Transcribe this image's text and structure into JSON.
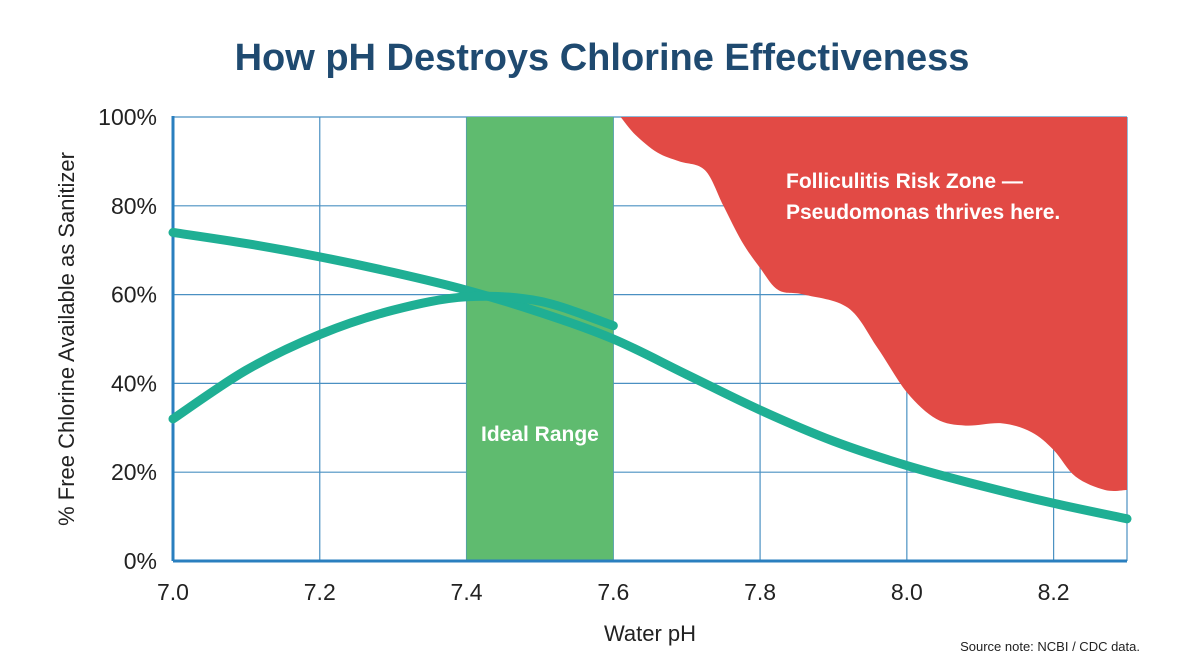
{
  "chart_data": {
    "type": "line",
    "title": "How pH Destroys Chlorine Effectiveness",
    "xlabel": "Water pH",
    "ylabel": "% Free Chlorine Available as Sanitizer",
    "xlim": [
      7.0,
      8.3
    ],
    "ylim": [
      0,
      100
    ],
    "x_ticks": [
      "7.0",
      "7.2",
      "7.4",
      "7.6",
      "7.8",
      "8.0",
      "8.2"
    ],
    "y_ticks": [
      "0%",
      "20%",
      "40%",
      "60%",
      "80%",
      "100%"
    ],
    "grid": true,
    "series": [
      {
        "x": [
          7.0,
          7.1,
          7.2,
          7.3,
          7.4,
          7.5,
          7.6,
          7.7,
          7.8,
          7.9,
          8.0,
          8.1,
          8.2,
          8.3
        ],
        "y": [
          74,
          71.5,
          68.5,
          65,
          61,
          56,
          50,
          42,
          34,
          27,
          21.5,
          17,
          13,
          9.5
        ]
      },
      {
        "x": [
          7.0,
          7.1,
          7.2,
          7.3,
          7.4,
          7.5,
          7.6
        ],
        "y": [
          32,
          43,
          51,
          56.5,
          59.5,
          58.5,
          53
        ]
      }
    ],
    "annotations": [
      {
        "text": "Ideal Range",
        "x_range": [
          7.4,
          7.6
        ]
      },
      {
        "text_lines": [
          "Folliculitis Risk Zone —",
          "Pseudomonas thrives here."
        ]
      }
    ],
    "source_note": "Source note: NCBI / CDC data.",
    "colors": {
      "title": "#1f4a70",
      "line": "#1faf94",
      "ideal_band": "#5fbb6f",
      "risk_zone": "#e24a45",
      "grid": "#4a90c2",
      "axis": "#2a7fbf",
      "text": "#222222"
    },
    "risk_zone_boundary": [
      [
        7.61,
        100
      ],
      [
        7.63,
        96
      ],
      [
        7.66,
        92
      ],
      [
        7.69,
        90
      ],
      [
        7.725,
        88
      ],
      [
        7.75,
        80
      ],
      [
        7.775,
        72
      ],
      [
        7.8,
        66
      ],
      [
        7.825,
        61
      ],
      [
        7.86,
        60
      ],
      [
        7.92,
        57
      ],
      [
        7.96,
        48
      ],
      [
        8.0,
        38
      ],
      [
        8.04,
        32
      ],
      [
        8.08,
        30.5
      ],
      [
        8.13,
        31
      ],
      [
        8.17,
        29
      ],
      [
        8.2,
        25
      ],
      [
        8.23,
        19
      ],
      [
        8.27,
        16
      ],
      [
        8.3,
        16
      ]
    ]
  }
}
